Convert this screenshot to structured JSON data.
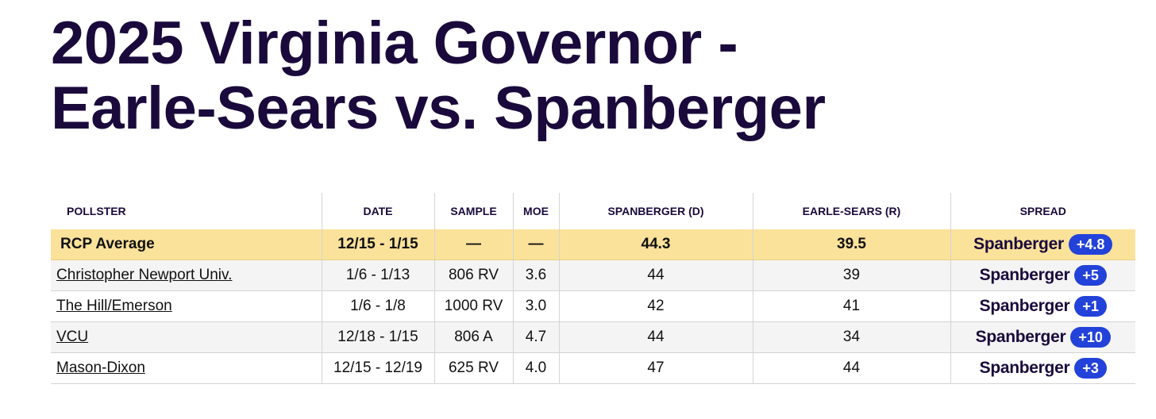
{
  "title": {
    "line1": "2025 Virginia Governor -",
    "line2": "Earle-Sears vs. Spanberger"
  },
  "table": {
    "headers": {
      "pollster": "POLLSTER",
      "date": "DATE",
      "sample": "SAMPLE",
      "moe": "MOE",
      "spanberger": "SPANBERGER (D)",
      "earle_sears": "EARLE-SEARS (R)",
      "spread": "SPREAD"
    },
    "average": {
      "pollster": "RCP Average",
      "date": "12/15 - 1/15",
      "sample": "—",
      "moe": "—",
      "spanberger": "44.3",
      "earle_sears": "39.5",
      "spread_leader": "Spanberger",
      "spread_value": "+4.8"
    },
    "rows": [
      {
        "pollster": "Christopher Newport Univ.",
        "date": "1/6 - 1/13",
        "sample": "806 RV",
        "moe": "3.6",
        "spanberger": "44",
        "earle_sears": "39",
        "spread_leader": "Spanberger",
        "spread_value": "+5"
      },
      {
        "pollster": "The Hill/Emerson",
        "date": "1/6 - 1/8",
        "sample": "1000 RV",
        "moe": "3.0",
        "spanberger": "42",
        "earle_sears": "41",
        "spread_leader": "Spanberger",
        "spread_value": "+1"
      },
      {
        "pollster": "VCU",
        "date": "12/18 - 1/15",
        "sample": "806 A",
        "moe": "4.7",
        "spanberger": "44",
        "earle_sears": "34",
        "spread_leader": "Spanberger",
        "spread_value": "+10"
      },
      {
        "pollster": "Mason-Dixon",
        "date": "12/15 - 12/19",
        "sample": "625 RV",
        "moe": "4.0",
        "spanberger": "47",
        "earle_sears": "44",
        "spread_leader": "Spanberger",
        "spread_value": "+3"
      }
    ]
  },
  "colors": {
    "title": "#1a0a3c",
    "average_row": "#fbe29b",
    "badge": "#2342d9",
    "row_shade": "#f4f4f4"
  }
}
